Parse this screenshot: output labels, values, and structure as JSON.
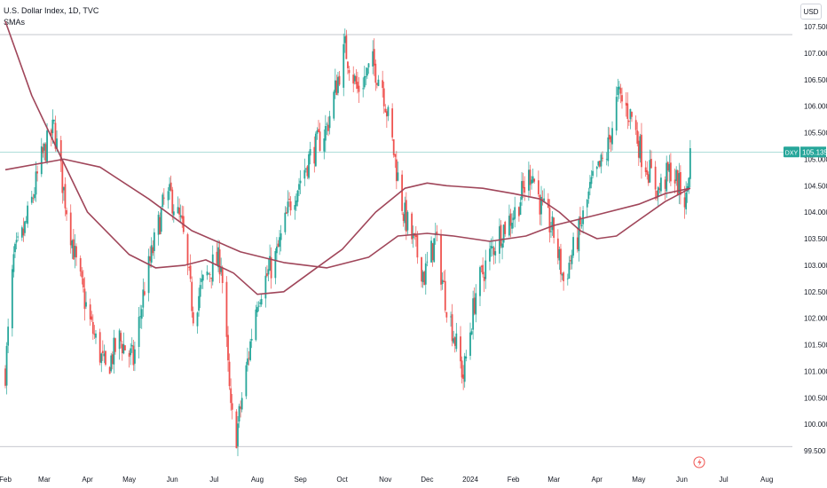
{
  "legend": {
    "symbol_title": "U.S. Dollar Index, 1D, TVC",
    "indicator": "SMAs"
  },
  "currency_button": "USD",
  "price_tag": {
    "symbol": "DXY",
    "value": "105.135"
  },
  "colors": {
    "up": "#26a69a",
    "down": "#ef5350",
    "sma": "#a0465a",
    "last_price_line": "#26a69a",
    "range_line": "#b2b5be"
  },
  "chart_data": {
    "type": "candlestick",
    "title": "U.S. Dollar Index, 1D, TVC",
    "indicator": "SMAs",
    "y_axis": {
      "range": [
        99.5,
        107.9
      ],
      "tick_labels": [
        "99.500",
        "100.000",
        "100.500",
        "101.000",
        "101.500",
        "102.000",
        "102.500",
        "103.000",
        "103.500",
        "104.000",
        "104.500",
        "105.000",
        "105.500",
        "106.000",
        "106.500",
        "107.000",
        "107.500"
      ]
    },
    "x_axis": {
      "range": [
        "2023-02-01",
        "2024-08-06"
      ],
      "tick_labels": [
        {
          "label": "Feb",
          "date": "2023-02-01"
        },
        {
          "label": "Mar",
          "date": "2023-03-01"
        },
        {
          "label": "Apr",
          "date": "2023-04-01"
        },
        {
          "label": "May",
          "date": "2023-05-01"
        },
        {
          "label": "Jun",
          "date": "2023-06-01"
        },
        {
          "label": "Jul",
          "date": "2023-07-01"
        },
        {
          "label": "Aug",
          "date": "2023-08-01"
        },
        {
          "label": "Sep",
          "date": "2023-09-01"
        },
        {
          "label": "Oct",
          "date": "2023-10-01"
        },
        {
          "label": "Nov",
          "date": "2023-11-01"
        },
        {
          "label": "Dec",
          "date": "2023-12-01"
        },
        {
          "label": "2024",
          "date": "2024-01-01"
        },
        {
          "label": "Feb",
          "date": "2024-02-01"
        },
        {
          "label": "Mar",
          "date": "2024-03-01"
        },
        {
          "label": "Apr",
          "date": "2024-04-01"
        },
        {
          "label": "May",
          "date": "2024-05-01"
        },
        {
          "label": "Jun",
          "date": "2024-06-01"
        },
        {
          "label": "Jul",
          "date": "2024-07-01"
        },
        {
          "label": "Aug",
          "date": "2024-08-01"
        }
      ]
    },
    "range_high": 107.35,
    "range_low": 99.58,
    "last_price": 105.135,
    "close_path": [
      [
        "2023-02-01",
        101.0
      ],
      [
        "2023-02-07",
        103.1
      ],
      [
        "2023-02-14",
        103.6
      ],
      [
        "2023-02-20",
        104.2
      ],
      [
        "2023-02-27",
        105.0
      ],
      [
        "2023-03-08",
        105.6
      ],
      [
        "2023-03-15",
        104.4
      ],
      [
        "2023-03-24",
        103.0
      ],
      [
        "2023-04-03",
        101.9
      ],
      [
        "2023-04-14",
        101.0
      ],
      [
        "2023-04-24",
        101.6
      ],
      [
        "2023-05-04",
        101.2
      ],
      [
        "2023-05-12",
        102.6
      ],
      [
        "2023-05-26",
        104.2
      ],
      [
        "2023-05-31",
        104.3
      ],
      [
        "2023-06-08",
        103.7
      ],
      [
        "2023-06-16",
        102.1
      ],
      [
        "2023-06-22",
        102.6
      ],
      [
        "2023-06-30",
        103.0
      ],
      [
        "2023-07-06",
        103.1
      ],
      [
        "2023-07-13",
        100.2
      ],
      [
        "2023-07-17",
        99.8
      ],
      [
        "2023-07-24",
        101.0
      ],
      [
        "2023-08-01",
        102.4
      ],
      [
        "2023-08-15",
        103.2
      ],
      [
        "2023-08-25",
        104.2
      ],
      [
        "2023-09-07",
        105.0
      ],
      [
        "2023-09-20",
        105.6
      ],
      [
        "2023-09-26",
        106.3
      ],
      [
        "2023-10-03",
        107.1
      ],
      [
        "2023-10-12",
        106.3
      ],
      [
        "2023-10-23",
        106.8
      ],
      [
        "2023-10-30",
        106.4
      ],
      [
        "2023-11-06",
        105.3
      ],
      [
        "2023-11-14",
        104.0
      ],
      [
        "2023-11-29",
        102.8
      ],
      [
        "2023-12-07",
        103.5
      ],
      [
        "2023-12-14",
        102.4
      ],
      [
        "2023-12-27",
        100.9
      ],
      [
        "2024-01-05",
        102.5
      ],
      [
        "2024-01-12",
        103.0
      ],
      [
        "2024-01-22",
        103.6
      ],
      [
        "2024-02-02",
        104.0
      ],
      [
        "2024-02-14",
        104.8
      ],
      [
        "2024-02-21",
        104.1
      ],
      [
        "2024-03-01",
        103.6
      ],
      [
        "2024-03-08",
        102.7
      ],
      [
        "2024-03-19",
        103.6
      ],
      [
        "2024-03-28",
        104.5
      ],
      [
        "2024-04-08",
        105.1
      ],
      [
        "2024-04-16",
        106.2
      ],
      [
        "2024-04-26",
        105.8
      ],
      [
        "2024-05-03",
        105.1
      ],
      [
        "2024-05-15",
        104.4
      ],
      [
        "2024-05-24",
        104.8
      ],
      [
        "2024-06-04",
        104.2
      ],
      [
        "2024-06-07",
        105.1
      ]
    ],
    "sma_short": [
      [
        "2023-02-01",
        107.6
      ],
      [
        "2023-02-20",
        106.2
      ],
      [
        "2023-03-10",
        105.2
      ],
      [
        "2023-04-01",
        104.0
      ],
      [
        "2023-05-01",
        103.2
      ],
      [
        "2023-05-20",
        102.95
      ],
      [
        "2023-06-10",
        103.0
      ],
      [
        "2023-06-25",
        103.1
      ],
      [
        "2023-07-15",
        102.85
      ],
      [
        "2023-08-01",
        102.45
      ],
      [
        "2023-08-20",
        102.5
      ],
      [
        "2023-09-10",
        102.9
      ],
      [
        "2023-10-01",
        103.3
      ],
      [
        "2023-10-25",
        104.0
      ],
      [
        "2023-11-15",
        104.45
      ],
      [
        "2023-12-01",
        104.55
      ],
      [
        "2023-12-15",
        104.5
      ],
      [
        "2024-01-10",
        104.45
      ],
      [
        "2024-02-01",
        104.35
      ],
      [
        "2024-02-20",
        104.25
      ],
      [
        "2024-03-05",
        104.0
      ],
      [
        "2024-03-20",
        103.65
      ],
      [
        "2024-04-01",
        103.5
      ],
      [
        "2024-04-15",
        103.55
      ],
      [
        "2024-05-01",
        103.85
      ],
      [
        "2024-05-20",
        104.2
      ],
      [
        "2024-06-07",
        104.45
      ]
    ],
    "sma_long": [
      [
        "2023-02-01",
        104.8
      ],
      [
        "2023-03-15",
        105.0
      ],
      [
        "2023-04-10",
        104.85
      ],
      [
        "2023-05-15",
        104.25
      ],
      [
        "2023-06-15",
        103.65
      ],
      [
        "2023-07-20",
        103.25
      ],
      [
        "2023-08-20",
        103.05
      ],
      [
        "2023-09-20",
        102.95
      ],
      [
        "2023-10-20",
        103.15
      ],
      [
        "2023-11-10",
        103.55
      ],
      [
        "2023-12-01",
        103.6
      ],
      [
        "2023-12-20",
        103.55
      ],
      [
        "2024-01-15",
        103.45
      ],
      [
        "2024-02-10",
        103.55
      ],
      [
        "2024-03-01",
        103.75
      ],
      [
        "2024-04-01",
        103.95
      ],
      [
        "2024-05-01",
        104.15
      ],
      [
        "2024-05-20",
        104.35
      ],
      [
        "2024-06-07",
        104.45
      ]
    ]
  }
}
